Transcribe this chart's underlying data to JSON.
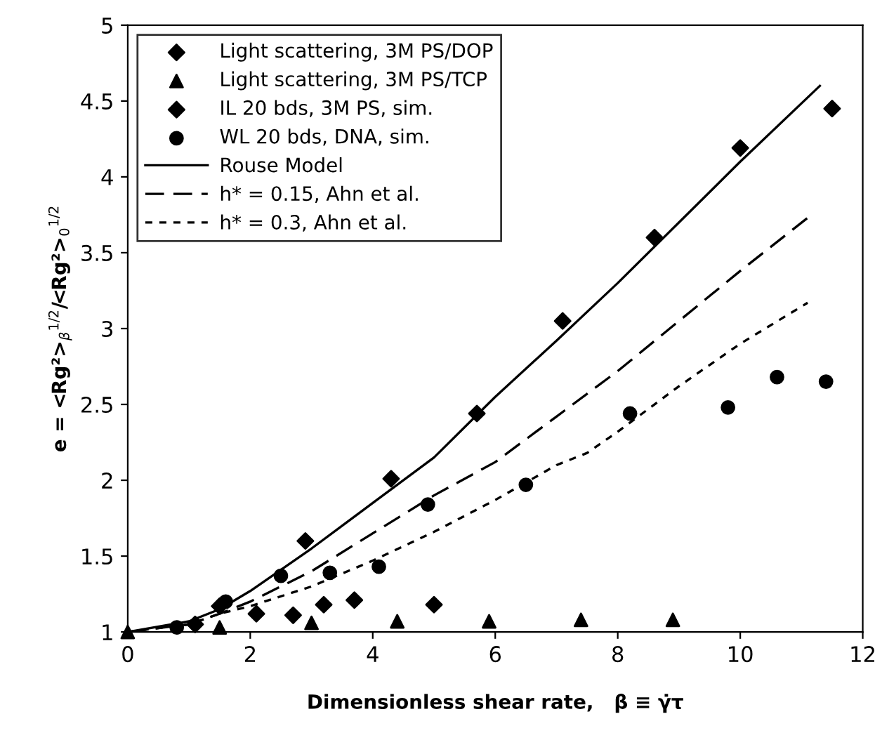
{
  "chart_data": {
    "type": "scatter",
    "xlabel": "Dimensionless shear rate,   β ≡ γ̇τ",
    "ylabel": "e = <Rg²>$_{β}$$^{1/2}$/<Rg²>$_{0}$$^{1/2}$",
    "xlim": [
      0,
      12
    ],
    "ylim": [
      1,
      5
    ],
    "xticks": [
      0,
      2,
      4,
      6,
      8,
      10,
      12
    ],
    "yticks": [
      1,
      1.5,
      2,
      2.5,
      3,
      3.5,
      4,
      4.5,
      5
    ],
    "grid": false,
    "legend": "top left",
    "series": [
      {
        "name": "Light scattering, 3M PS/DOP",
        "marker": "diamond",
        "color": "#000000",
        "x": [
          1.1,
          2.1,
          2.7,
          3.2,
          3.7,
          5.0
        ],
        "values": [
          1.05,
          1.12,
          1.11,
          1.18,
          1.21,
          1.18
        ]
      },
      {
        "name": "Light scattering, 3M PS/TCP",
        "marker": "triangle",
        "color": "#000000",
        "x": [
          0,
          1.5,
          3.0,
          4.4,
          5.9,
          7.4,
          8.9
        ],
        "values": [
          1.0,
          1.03,
          1.06,
          1.07,
          1.07,
          1.08,
          1.08
        ]
      },
      {
        "name": "IL 20 bds, 3M PS, sim.",
        "marker": "diamond",
        "color": "#000000",
        "x": [
          1.5,
          2.9,
          4.3,
          5.7,
          7.1,
          8.6,
          10.0,
          11.5
        ],
        "values": [
          1.17,
          1.6,
          2.01,
          2.44,
          3.05,
          3.6,
          4.19,
          4.45
        ]
      },
      {
        "name": "WL 20 bds, DNA, sim.",
        "marker": "circle",
        "color": "#000000",
        "x": [
          0.8,
          1.6,
          2.5,
          3.3,
          4.1,
          4.9,
          6.5,
          8.2,
          9.8,
          10.6,
          11.4
        ],
        "values": [
          1.03,
          1.2,
          1.37,
          1.39,
          1.43,
          1.84,
          1.97,
          2.44,
          2.48,
          2.68,
          2.65
        ]
      },
      {
        "name": "Rouse Model",
        "type": "line",
        "line_style": "solid",
        "color": "#000000",
        "x": [
          0,
          1,
          1.5,
          2,
          3,
          4,
          5,
          6,
          7,
          8,
          9,
          10,
          11.3
        ],
        "values": [
          1.0,
          1.07,
          1.15,
          1.27,
          1.55,
          1.85,
          2.15,
          2.55,
          2.92,
          3.3,
          3.7,
          4.1,
          4.6
        ]
      },
      {
        "name": "h* = 0.15, Ahn et al.",
        "type": "line",
        "line_style": "dashed",
        "color": "#000000",
        "x": [
          0,
          1,
          1.5,
          2,
          3,
          4,
          5,
          6,
          7,
          8,
          9,
          10,
          11.1
        ],
        "values": [
          1.0,
          1.05,
          1.12,
          1.2,
          1.4,
          1.65,
          1.9,
          2.12,
          2.42,
          2.72,
          3.05,
          3.38,
          3.73
        ]
      },
      {
        "name": "h* = 0.3, Ahn et al.",
        "type": "line",
        "line_style": "dotted",
        "color": "#000000",
        "x": [
          0,
          1,
          1.5,
          2,
          3,
          4,
          5,
          6,
          7,
          7.5,
          8,
          9,
          10,
          11.1
        ],
        "values": [
          1.0,
          1.05,
          1.12,
          1.17,
          1.3,
          1.47,
          1.66,
          1.87,
          2.1,
          2.18,
          2.32,
          2.62,
          2.9,
          3.17
        ]
      }
    ]
  }
}
